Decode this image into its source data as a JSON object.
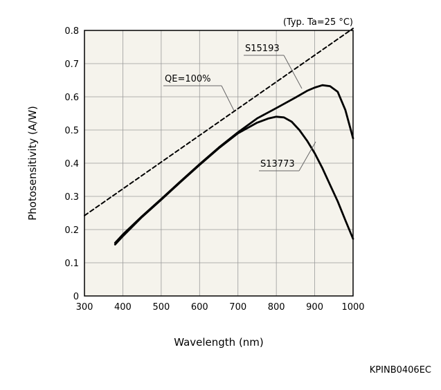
{
  "chart_data": {
    "type": "line",
    "title": "",
    "condition_note": "(Typ. Ta=25 °C)",
    "xlabel": "Wavelength (nm)",
    "ylabel": "Photosensitivity (A/W)",
    "xlim": [
      300,
      1000
    ],
    "ylim": [
      0,
      0.8
    ],
    "xticks": [
      300,
      400,
      500,
      600,
      700,
      800,
      900,
      1000
    ],
    "yticks": [
      0,
      0.1,
      0.2,
      0.3,
      0.4,
      0.5,
      0.6,
      0.7,
      0.8
    ],
    "xtick_labels": [
      "300",
      "400",
      "500",
      "600",
      "700",
      "800",
      "900",
      "1000"
    ],
    "ytick_labels": [
      "0",
      "0.1",
      "0.2",
      "0.3",
      "0.4",
      "0.5",
      "0.6",
      "0.7",
      "0.8"
    ],
    "grid": true,
    "colors": {
      "plot_bg": "#f5f3ec",
      "grid": "#9a9a9a",
      "line": "#000000"
    },
    "series": [
      {
        "name": "QE=100%",
        "style": "dashed",
        "x": [
          300,
          1000
        ],
        "y": [
          0.242,
          0.806
        ]
      },
      {
        "name": "S15193",
        "style": "solid",
        "x": [
          380,
          400,
          450,
          500,
          550,
          600,
          650,
          700,
          750,
          800,
          850,
          880,
          900,
          920,
          940,
          960,
          980,
          1000
        ],
        "y": [
          0.16,
          0.185,
          0.24,
          0.292,
          0.345,
          0.397,
          0.447,
          0.493,
          0.535,
          0.566,
          0.598,
          0.618,
          0.628,
          0.635,
          0.632,
          0.615,
          0.56,
          0.475
        ]
      },
      {
        "name": "S13773",
        "style": "solid",
        "x": [
          380,
          400,
          450,
          500,
          550,
          600,
          650,
          700,
          750,
          780,
          800,
          820,
          840,
          860,
          880,
          900,
          920,
          940,
          960,
          980,
          1000
        ],
        "y": [
          0.155,
          0.18,
          0.238,
          0.29,
          0.343,
          0.395,
          0.445,
          0.49,
          0.522,
          0.535,
          0.54,
          0.538,
          0.525,
          0.5,
          0.468,
          0.43,
          0.385,
          0.335,
          0.285,
          0.228,
          0.172
        ]
      }
    ],
    "annotations": [
      {
        "text": "QE=100%",
        "series": "QE=100%"
      },
      {
        "text": "S15193",
        "series": "S15193"
      },
      {
        "text": "S13773",
        "series": "S13773"
      }
    ]
  },
  "figure_code": "KPINB0406EC"
}
